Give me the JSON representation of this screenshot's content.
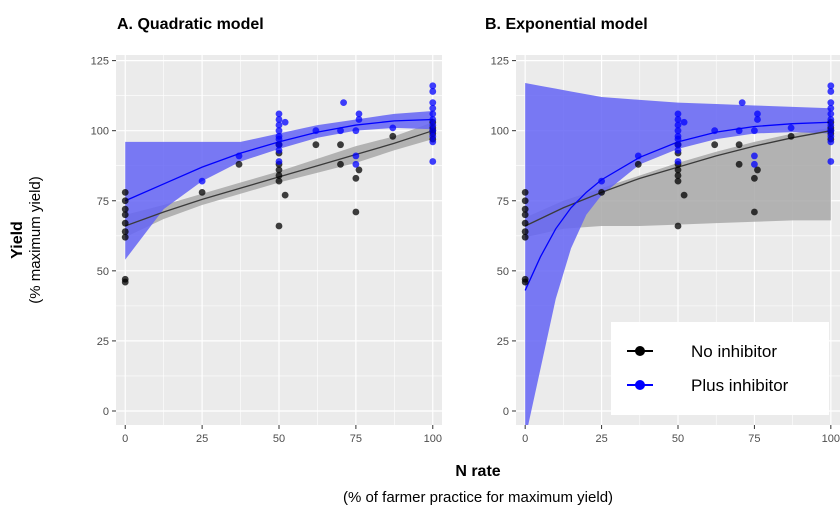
{
  "figure": {
    "ylabel_main": "Yield",
    "ylabel_sub": "(% maximum yield)",
    "xlabel_main": "N rate",
    "xlabel_sub": "(% of farmer practice for maximum yield)"
  },
  "colors": {
    "panel_bg": "#ebebeb",
    "grid": "#ffffff",
    "no_inhibitor": "#000000",
    "plus_inhibitor": "#0000ff",
    "band_plus": "#6464f5",
    "band_no": "#a8a8a8"
  },
  "legend": {
    "placement": "bottom-right of panel B",
    "entries": [
      {
        "label": "No inhibitor",
        "color": "#000000"
      },
      {
        "label": "Plus inhibitor",
        "color": "#0000ff"
      }
    ]
  },
  "chart_data": [
    {
      "type": "scatter",
      "title": "A. Quadratic model",
      "xlabel": "N rate",
      "ylabel": "Yield",
      "xlim": [
        -3,
        103
      ],
      "ylim": [
        -5,
        127
      ],
      "xticks": [
        0,
        25,
        50,
        75,
        100
      ],
      "yticks": [
        0,
        25,
        50,
        75,
        100,
        125
      ],
      "grid": true,
      "series": [
        {
          "name": "No inhibitor",
          "color": "#000000",
          "points": [
            [
              0,
              47
            ],
            [
              0,
              46
            ],
            [
              0,
              62
            ],
            [
              0,
              64
            ],
            [
              0,
              67
            ],
            [
              0,
              70
            ],
            [
              0,
              72
            ],
            [
              0,
              75
            ],
            [
              0,
              78
            ],
            [
              25,
              78
            ],
            [
              37,
              88
            ],
            [
              50,
              66
            ],
            [
              50,
              82
            ],
            [
              50,
              84
            ],
            [
              50,
              86
            ],
            [
              50,
              88
            ],
            [
              50,
              92
            ],
            [
              50,
              95
            ],
            [
              52,
              77
            ],
            [
              62,
              95
            ],
            [
              70,
              88
            ],
            [
              70,
              95
            ],
            [
              75,
              71
            ],
            [
              75,
              83
            ],
            [
              76,
              86
            ],
            [
              87,
              98
            ],
            [
              100,
              97
            ],
            [
              100,
              99
            ],
            [
              100,
              100
            ],
            [
              100,
              101
            ],
            [
              100,
              103
            ]
          ],
          "fit_x": [
            0,
            12.5,
            25,
            37.5,
            50,
            62.5,
            75,
            87.5,
            100
          ],
          "fit_y": [
            66,
            71,
            75.5,
            79.5,
            83.5,
            87.5,
            91.5,
            95.5,
            100
          ],
          "band_low": [
            62,
            68.5,
            73.5,
            77.5,
            81.5,
            85,
            88.5,
            93,
            97
          ],
          "band_high": [
            70,
            73.5,
            77.5,
            81.5,
            85.5,
            90,
            94.5,
            98,
            103
          ]
        },
        {
          "name": "Plus inhibitor",
          "color": "#0000ff",
          "points": [
            [
              25,
              82
            ],
            [
              37,
              91
            ],
            [
              50,
              89
            ],
            [
              50,
              93
            ],
            [
              50,
              95
            ],
            [
              50,
              97
            ],
            [
              50,
              98
            ],
            [
              50,
              100
            ],
            [
              50,
              102
            ],
            [
              50,
              104
            ],
            [
              50,
              106
            ],
            [
              52,
              103
            ],
            [
              62,
              100
            ],
            [
              70,
              100
            ],
            [
              71,
              110
            ],
            [
              75,
              88
            ],
            [
              75,
              91
            ],
            [
              75,
              100
            ],
            [
              76,
              104
            ],
            [
              76,
              106
            ],
            [
              87,
              101
            ],
            [
              100,
              89
            ],
            [
              100,
              96
            ],
            [
              100,
              98
            ],
            [
              100,
              100
            ],
            [
              100,
              102
            ],
            [
              100,
              104
            ],
            [
              100,
              106
            ],
            [
              100,
              108
            ],
            [
              100,
              110
            ],
            [
              100,
              114
            ],
            [
              100,
              116
            ]
          ],
          "fit_x": [
            0,
            12.5,
            25,
            37.5,
            50,
            62.5,
            75,
            87.5,
            100
          ],
          "fit_y": [
            75,
            81,
            87,
            92,
            96,
            99.5,
            102,
            103.5,
            104
          ],
          "band_low": [
            54,
            72,
            82,
            89,
            93.5,
            97.5,
            100,
            101,
            100.5
          ],
          "band_high": [
            96,
            96,
            96,
            96,
            99,
            102,
            104,
            106,
            107
          ]
        }
      ]
    },
    {
      "type": "scatter",
      "title": "B. Exponential model",
      "xlabel": "N rate",
      "ylabel": "Yield",
      "xlim": [
        -3,
        103
      ],
      "ylim": [
        -5,
        127
      ],
      "xticks": [
        0,
        25,
        50,
        75,
        100
      ],
      "yticks": [
        0,
        25,
        50,
        75,
        100,
        125
      ],
      "grid": true,
      "series": [
        {
          "name": "No inhibitor",
          "color": "#000000",
          "points": [
            [
              0,
              47
            ],
            [
              0,
              46
            ],
            [
              0,
              62
            ],
            [
              0,
              64
            ],
            [
              0,
              67
            ],
            [
              0,
              70
            ],
            [
              0,
              72
            ],
            [
              0,
              75
            ],
            [
              0,
              78
            ],
            [
              25,
              78
            ],
            [
              37,
              88
            ],
            [
              50,
              66
            ],
            [
              50,
              82
            ],
            [
              50,
              84
            ],
            [
              50,
              86
            ],
            [
              50,
              88
            ],
            [
              50,
              92
            ],
            [
              50,
              95
            ],
            [
              52,
              77
            ],
            [
              62,
              95
            ],
            [
              70,
              88
            ],
            [
              70,
              95
            ],
            [
              75,
              71
            ],
            [
              75,
              83
            ],
            [
              76,
              86
            ],
            [
              87,
              98
            ],
            [
              100,
              97
            ],
            [
              100,
              99
            ],
            [
              100,
              100
            ],
            [
              100,
              101
            ],
            [
              100,
              103
            ]
          ],
          "fit_x": [
            0,
            12.5,
            25,
            37.5,
            50,
            62.5,
            75,
            87.5,
            100
          ],
          "fit_y": [
            66,
            72.5,
            78,
            83,
            87,
            91,
            94.5,
            97.5,
            100
          ],
          "band_low": [
            62,
            65,
            66,
            66,
            66.5,
            67,
            67.5,
            68,
            68
          ],
          "band_high": [
            69,
            75,
            79.5,
            84,
            88.5,
            92.5,
            96,
            99,
            101
          ]
        },
        {
          "name": "Plus inhibitor",
          "color": "#0000ff",
          "points": [
            [
              25,
              82
            ],
            [
              37,
              91
            ],
            [
              50,
              89
            ],
            [
              50,
              93
            ],
            [
              50,
              95
            ],
            [
              50,
              97
            ],
            [
              50,
              98
            ],
            [
              50,
              100
            ],
            [
              50,
              102
            ],
            [
              50,
              104
            ],
            [
              50,
              106
            ],
            [
              52,
              103
            ],
            [
              62,
              100
            ],
            [
              70,
              100
            ],
            [
              71,
              110
            ],
            [
              75,
              88
            ],
            [
              75,
              91
            ],
            [
              75,
              100
            ],
            [
              76,
              104
            ],
            [
              76,
              106
            ],
            [
              87,
              101
            ],
            [
              100,
              89
            ],
            [
              100,
              96
            ],
            [
              100,
              98
            ],
            [
              100,
              100
            ],
            [
              100,
              102
            ],
            [
              100,
              104
            ],
            [
              100,
              106
            ],
            [
              100,
              108
            ],
            [
              100,
              110
            ],
            [
              100,
              114
            ],
            [
              100,
              116
            ]
          ],
          "fit_x": [
            0,
            5,
            10,
            15,
            20,
            25,
            37.5,
            50,
            62.5,
            75,
            87.5,
            100
          ],
          "fit_y": [
            43,
            55,
            65,
            72.5,
            78,
            82.5,
            90.5,
            96,
            99.5,
            101.5,
            102.5,
            103
          ],
          "band_low": [
            -10,
            15,
            40,
            58,
            70,
            77,
            88,
            93.5,
            97,
            99,
            99.5,
            99
          ],
          "band_high": [
            117,
            116,
            115,
            114,
            113,
            112,
            111,
            110,
            109.5,
            109,
            108.5,
            108
          ]
        }
      ]
    }
  ]
}
